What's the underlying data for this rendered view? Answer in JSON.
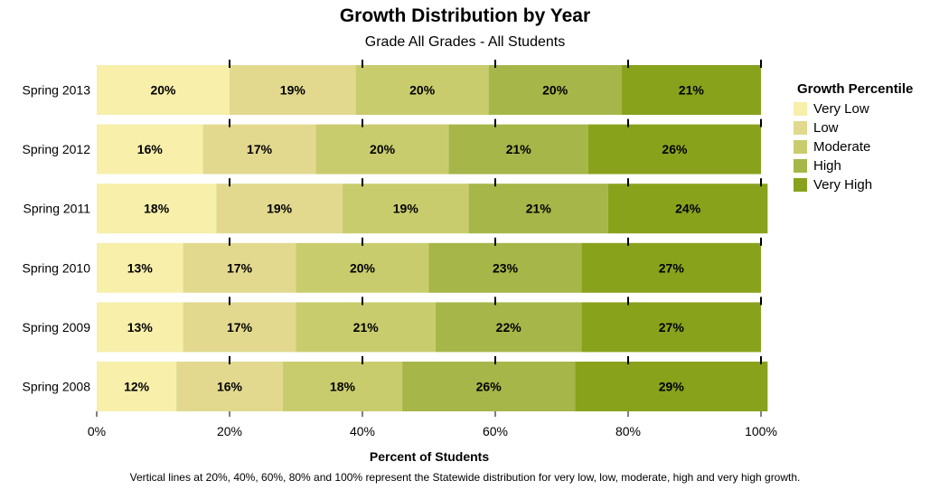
{
  "chart_data": {
    "type": "bar",
    "orientation": "horizontal",
    "stacked": true,
    "title": "Growth Distribution by Year",
    "subtitle": "Grade All Grades - All Students",
    "xlabel": "Percent of Students",
    "ylabel": "",
    "xlim": [
      0,
      100
    ],
    "x_ticks": [
      "0%",
      "20%",
      "40%",
      "60%",
      "80%",
      "100%"
    ],
    "categories": [
      "Spring 2013",
      "Spring 2012",
      "Spring 2011",
      "Spring 2010",
      "Spring 2009",
      "Spring 2008"
    ],
    "series": [
      {
        "name": "Very Low",
        "color": "#f7efaa",
        "values": [
          20,
          16,
          18,
          13,
          13,
          12
        ]
      },
      {
        "name": "Low",
        "color": "#e2d98f",
        "values": [
          19,
          17,
          19,
          17,
          17,
          16
        ]
      },
      {
        "name": "Moderate",
        "color": "#c9cc6c",
        "values": [
          20,
          20,
          19,
          20,
          21,
          18
        ]
      },
      {
        "name": "High",
        "color": "#a6b648",
        "values": [
          20,
          21,
          21,
          23,
          22,
          26
        ]
      },
      {
        "name": "Very High",
        "color": "#88a21c",
        "values": [
          21,
          26,
          24,
          27,
          27,
          29
        ]
      }
    ],
    "reference_lines": [
      20,
      40,
      60,
      80,
      100
    ],
    "legend_title": "Growth Percentile",
    "legend_position": "right",
    "grid": false,
    "footnote": "Vertical lines at 20%, 40%, 60%, 80% and 100% represent the Statewide distribution for very low, low, moderate, high and very high growth."
  }
}
